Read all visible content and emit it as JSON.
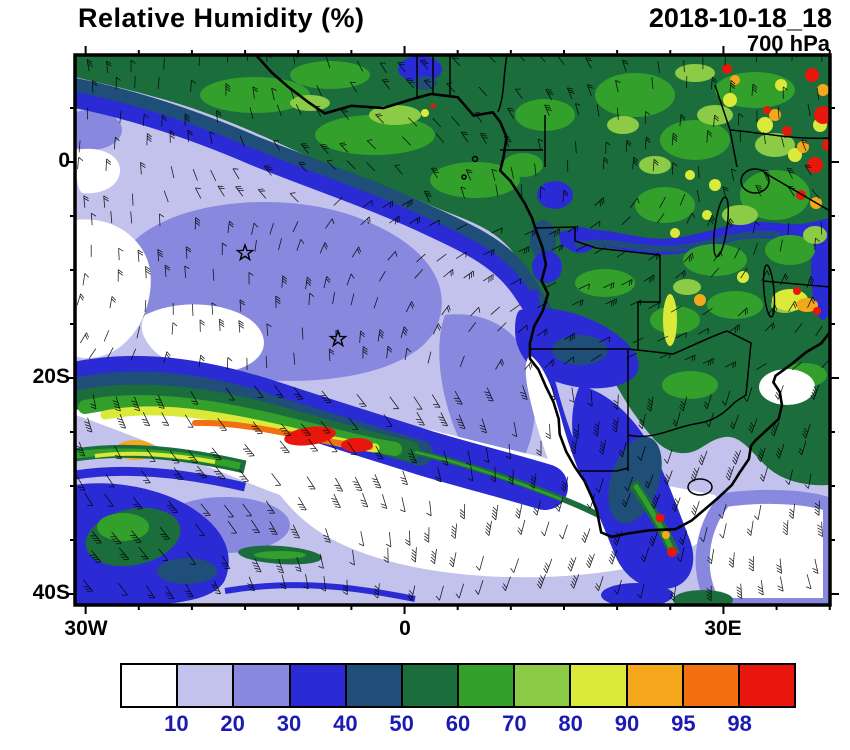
{
  "header": {
    "title": "Relative Humidity (%)",
    "datetime": "2018-10-18_18",
    "level": "700 hPa"
  },
  "axes": {
    "x_ticks": [
      "30W",
      "0",
      "30E"
    ],
    "y_ticks": [
      "0",
      "20S",
      "40S"
    ]
  },
  "colorbar": {
    "labels": [
      "10",
      "20",
      "30",
      "40",
      "50",
      "60",
      "70",
      "80",
      "90",
      "95",
      "98"
    ],
    "colors": [
      "#FFFFFF",
      "#C2C2EC",
      "#8888DF",
      "#2B2BD6",
      "#1F4E79",
      "#1B6E3C",
      "#33A02C",
      "#8CCB46",
      "#DBEA3A",
      "#F5A81C",
      "#F2700F",
      "#E8160C"
    ],
    "label_color": "#1B1BB3"
  },
  "chart_data": {
    "type": "heatmap",
    "title": "Relative Humidity (%)",
    "valid_time": "2018-10-18_18",
    "pressure_level": "700 hPa",
    "units": "%",
    "projection": "lat-lon map of southern Africa and South Atlantic",
    "x_tick_labels": [
      "30W",
      "0",
      "30E"
    ],
    "y_tick_labels": [
      "0",
      "20S",
      "40S"
    ],
    "lon_range_deg": [
      -31,
      40
    ],
    "lat_range_deg": [
      10,
      -41
    ],
    "contour_levels_percent": [
      10,
      20,
      30,
      40,
      50,
      60,
      70,
      80,
      90,
      95,
      98
    ],
    "palette_hex": [
      "#FFFFFF",
      "#C2C2EC",
      "#8888DF",
      "#2B2BD6",
      "#1F4E79",
      "#1B6E3C",
      "#33A02C",
      "#8CCB46",
      "#DBEA3A",
      "#F5A81C",
      "#F2700F",
      "#E8160C"
    ],
    "overlays": [
      "wind barbs",
      "coastline",
      "country borders",
      "lakes",
      "two star markers"
    ],
    "star_markers_lonlat": [
      [
        -14.4,
        -7.9
      ],
      [
        -5.7,
        -15.9
      ]
    ],
    "features": [
      "Broad moist band (50-90%) along the equator, Gulf of Guinea and Congo basin",
      "Very moist patches (>90-98%) over East Africa and the north-east corner of the map",
      "Large dry subtropical South Atlantic region (10-30%) with <10% white slot near 20-30S",
      "SW-NE tilted moist cloud band (60 to >98%) near 20-27S between 30W and 5E with >98% red core",
      "Dry (<10-20%) air over Namibia and the central South African interior",
      "Moist 30-60% band with >95% spots along the south-east South African coast",
      "Mostly dry (<20%) with strong westerly wind barbs south of 35S"
    ]
  }
}
